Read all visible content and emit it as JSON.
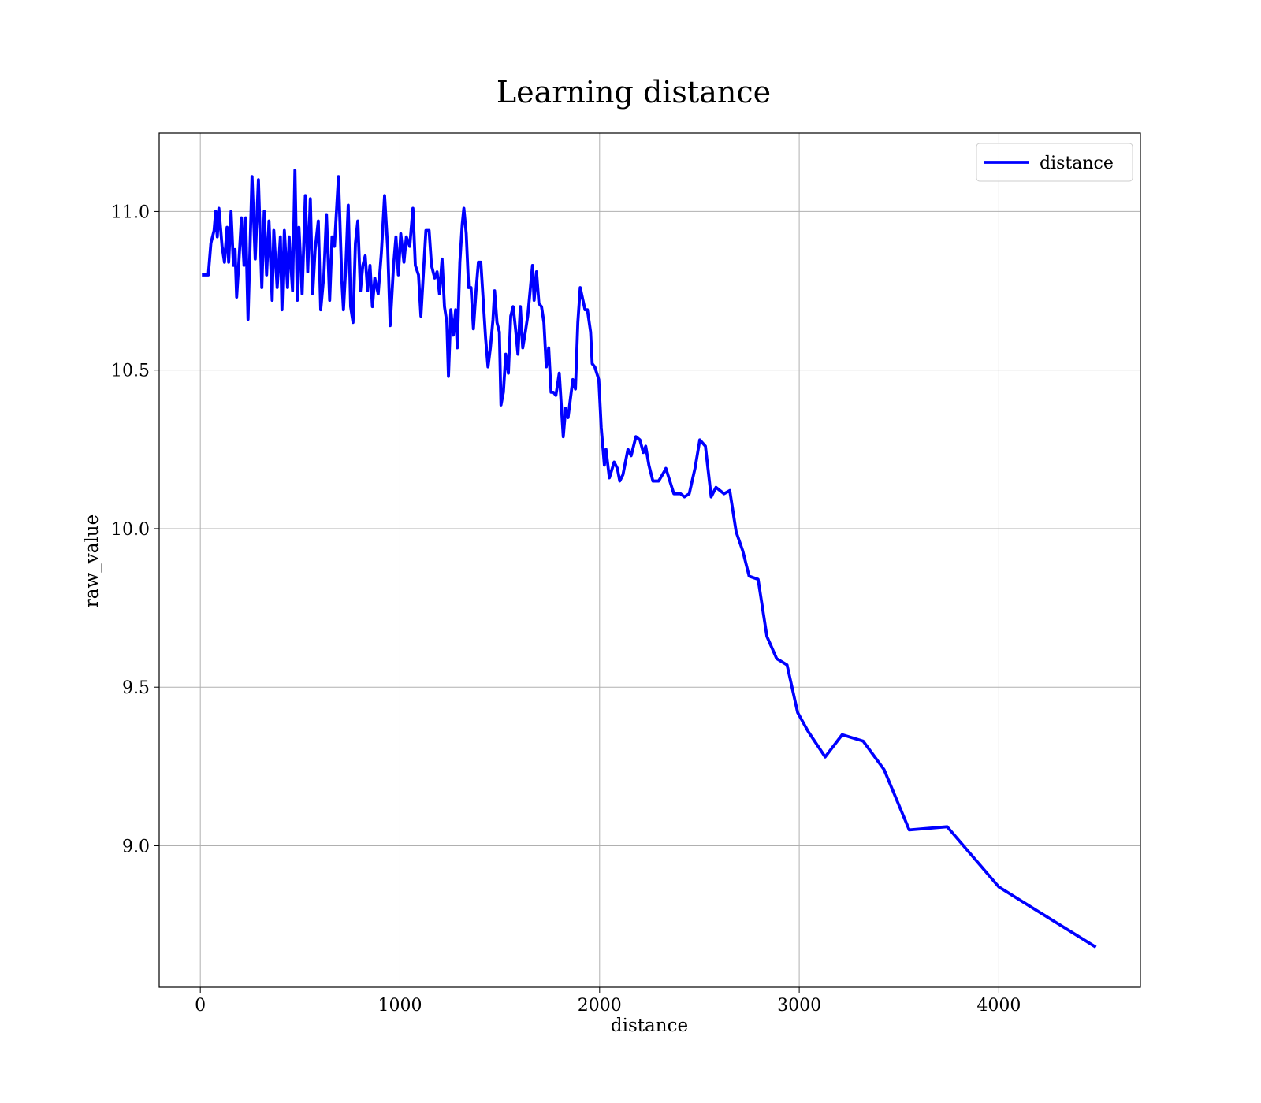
{
  "chart_data": {
    "type": "line",
    "title": "Learning distance",
    "x_label": "distance",
    "y_label": "raw_value",
    "xlim": [
      -206,
      4709
    ],
    "ylim": [
      8.554,
      11.247
    ],
    "xticks": [
      0,
      1000,
      2000,
      3000,
      4000
    ],
    "yticks": [
      {
        "value": 9,
        "label": "9.0"
      },
      9.5,
      {
        "value": 10,
        "label": "10.0"
      },
      10.5,
      {
        "value": 11,
        "label": "11.0"
      }
    ],
    "grid": true,
    "legend": "upper right",
    "x": [
      8,
      40,
      53,
      69,
      77,
      85,
      93,
      109,
      121,
      134,
      142,
      154,
      166,
      174,
      182,
      194,
      206,
      219,
      227,
      239,
      259,
      275,
      291,
      308,
      320,
      332,
      344,
      360,
      368,
      385,
      401,
      409,
      421,
      437,
      445,
      462,
      474,
      486,
      494,
      510,
      526,
      538,
      551,
      563,
      575,
      591,
      603,
      619,
      632,
      648,
      660,
      672,
      692,
      709,
      717,
      729,
      741,
      753,
      765,
      777,
      789,
      802,
      814,
      826,
      838,
      850,
      862,
      874,
      891,
      907,
      923,
      939,
      951,
      968,
      980,
      992,
      1004,
      1020,
      1032,
      1049,
      1065,
      1077,
      1093,
      1105,
      1117,
      1130,
      1146,
      1158,
      1174,
      1186,
      1198,
      1211,
      1223,
      1235,
      1243,
      1255,
      1267,
      1279,
      1287,
      1300,
      1312,
      1320,
      1332,
      1344,
      1356,
      1368,
      1381,
      1393,
      1405,
      1417,
      1429,
      1441,
      1453,
      1466,
      1474,
      1486,
      1498,
      1506,
      1518,
      1530,
      1543,
      1555,
      1567,
      1579,
      1591,
      1603,
      1615,
      1628,
      1640,
      1652,
      1664,
      1672,
      1684,
      1696,
      1709,
      1721,
      1733,
      1745,
      1757,
      1769,
      1781,
      1798,
      1810,
      1818,
      1830,
      1842,
      1854,
      1866,
      1879,
      1891,
      1903,
      1927,
      1939,
      1955,
      1963,
      1976,
      1996,
      2008,
      2024,
      2032,
      2049,
      2073,
      2089,
      2101,
      2117,
      2142,
      2158,
      2182,
      2202,
      2219,
      2231,
      2247,
      2267,
      2296,
      2324,
      2332,
      2372,
      2405,
      2425,
      2449,
      2478,
      2502,
      2530,
      2559,
      2583,
      2623,
      2652,
      2684,
      2717,
      2749,
      2794,
      2838,
      2887,
      2939,
      2992,
      3045,
      3130,
      3215,
      3320,
      3425,
      3551,
      3741,
      4000,
      4486
    ],
    "series": [
      {
        "name": "distance",
        "color": "#0000ff",
        "values": [
          10.8,
          10.8,
          10.9,
          10.94,
          11.0,
          10.92,
          11.01,
          10.89,
          10.84,
          10.95,
          10.84,
          11.0,
          10.83,
          10.88,
          10.73,
          10.85,
          10.98,
          10.83,
          10.98,
          10.66,
          11.11,
          10.85,
          11.1,
          10.76,
          11.0,
          10.8,
          10.97,
          10.72,
          10.94,
          10.76,
          10.92,
          10.69,
          10.94,
          10.76,
          10.92,
          10.75,
          11.13,
          10.72,
          10.95,
          10.74,
          11.05,
          10.81,
          11.04,
          10.74,
          10.88,
          10.97,
          10.69,
          10.8,
          10.99,
          10.72,
          10.92,
          10.89,
          11.11,
          10.78,
          10.69,
          10.83,
          11.02,
          10.7,
          10.65,
          10.9,
          10.97,
          10.75,
          10.83,
          10.86,
          10.75,
          10.83,
          10.7,
          10.79,
          10.74,
          10.87,
          11.05,
          10.88,
          10.64,
          10.83,
          10.92,
          10.8,
          10.93,
          10.84,
          10.92,
          10.89,
          11.01,
          10.83,
          10.8,
          10.67,
          10.8,
          10.94,
          10.94,
          10.83,
          10.79,
          10.81,
          10.74,
          10.85,
          10.7,
          10.65,
          10.48,
          10.69,
          10.61,
          10.69,
          10.57,
          10.84,
          10.96,
          11.01,
          10.93,
          10.76,
          10.76,
          10.63,
          10.75,
          10.84,
          10.84,
          10.72,
          10.6,
          10.51,
          10.57,
          10.66,
          10.75,
          10.65,
          10.62,
          10.39,
          10.43,
          10.55,
          10.49,
          10.67,
          10.7,
          10.63,
          10.55,
          10.7,
          10.57,
          10.62,
          10.67,
          10.75,
          10.83,
          10.72,
          10.81,
          10.71,
          10.7,
          10.65,
          10.51,
          10.57,
          10.43,
          10.43,
          10.42,
          10.49,
          10.37,
          10.29,
          10.38,
          10.35,
          10.41,
          10.47,
          10.44,
          10.65,
          10.76,
          10.69,
          10.69,
          10.62,
          10.52,
          10.51,
          10.47,
          10.32,
          10.2,
          10.25,
          10.16,
          10.21,
          10.19,
          10.15,
          10.17,
          10.25,
          10.23,
          10.29,
          10.28,
          10.24,
          10.26,
          10.2,
          10.15,
          10.15,
          10.18,
          10.19,
          10.11,
          10.11,
          10.1,
          10.11,
          10.19,
          10.28,
          10.26,
          10.1,
          10.13,
          10.11,
          10.12,
          9.99,
          9.93,
          9.85,
          9.84,
          9.66,
          9.59,
          9.57,
          9.42,
          9.36,
          9.28,
          9.35,
          9.33,
          9.24,
          9.05,
          9.06,
          8.87,
          8.68
        ]
      }
    ]
  }
}
